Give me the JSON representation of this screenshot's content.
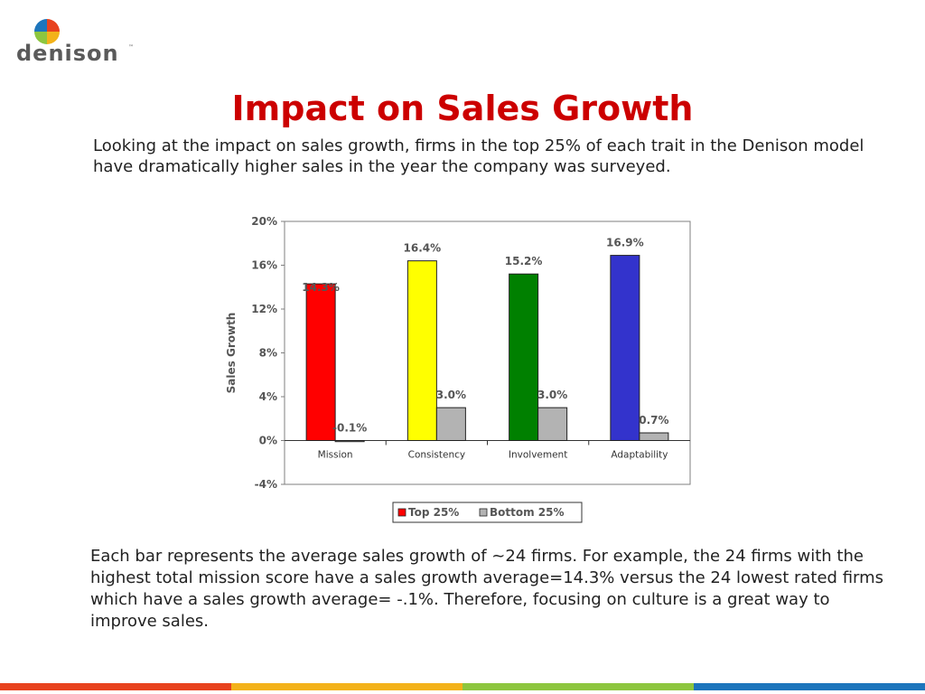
{
  "logo": {
    "text": "denison",
    "tm": "™"
  },
  "title": "Impact on Sales Growth",
  "intro": "Looking at the impact on sales growth, firms in the top 25% of each trait in the Denison model have dramatically higher sales in the year the company was surveyed.",
  "caption": "Each bar represents the average sales growth of ~24 firms. For example, the 24 firms with the highest total mission score have a sales growth average=14.3% versus the 24 lowest rated firms which have a sales growth average= -.1%. Therefore, focusing on culture is a great way to improve sales.",
  "chart_data": {
    "type": "bar",
    "categories": [
      "Mission",
      "Consistency",
      "Involvement",
      "Adaptability"
    ],
    "series": [
      {
        "name": "Top 25%",
        "values": [
          14.3,
          16.4,
          15.2,
          16.9
        ],
        "colors": [
          "#ff0000",
          "#ffff00",
          "#008000",
          "#3333cc"
        ]
      },
      {
        "name": "Bottom 25%",
        "values": [
          -0.1,
          3.0,
          3.0,
          0.7
        ],
        "colors": [
          "#b3b3b3",
          "#b3b3b3",
          "#b3b3b3",
          "#b3b3b3"
        ]
      }
    ],
    "data_labels": [
      [
        "14.3%",
        "16.4%",
        "15.2%",
        "16.9%"
      ],
      [
        "-0.1%",
        "3.0%",
        "3.0%",
        "0.7%"
      ]
    ],
    "ylabel": "Sales Growth",
    "ylim": [
      -4,
      20
    ],
    "yticks": [
      20,
      16,
      12,
      8,
      4,
      0,
      -4
    ],
    "ytick_labels": [
      "20%",
      "16%",
      "12%",
      "8%",
      "4%",
      "0%",
      "-4%"
    ],
    "legend": {
      "placement": "bottom",
      "entries": [
        "Top 25%",
        "Bottom 25%"
      ],
      "colors": [
        "#ff0000",
        "#b3b3b3"
      ]
    },
    "grid": false
  },
  "footer_colors": [
    "#e8421e",
    "#f3b21a",
    "#8dc63f",
    "#1d75bc"
  ]
}
